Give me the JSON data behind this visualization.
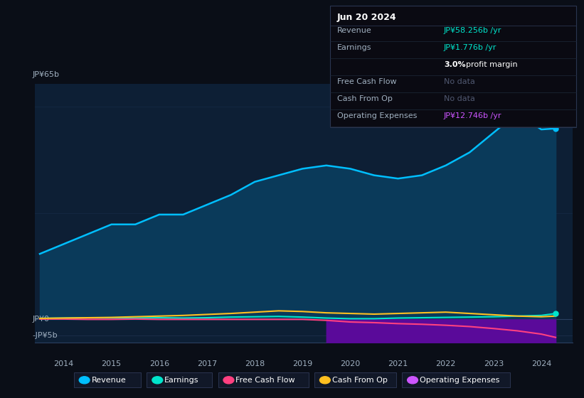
{
  "bg_color": "#0a0e17",
  "plot_bg_color": "#0d1f35",
  "title": "Jun 20 2024",
  "tooltip": {
    "Revenue": "JP¥58.256b /yr",
    "Earnings": "JP¥1.776b /yr",
    "profit_margin": "3.0%",
    "Free_Cash_Flow": "No data",
    "Cash_From_Op": "No data",
    "Operating_Expenses": "JP¥12.746b /yr"
  },
  "ylabel_top": "JP¥65b",
  "ylabel_zero": "JP¥0",
  "ylabel_neg": "-JP¥5b",
  "ylim": [
    -7,
    72
  ],
  "xlim": [
    2013.4,
    2024.65
  ],
  "years": [
    2013.5,
    2014.0,
    2014.5,
    2015.0,
    2015.5,
    2016.0,
    2016.5,
    2017.0,
    2017.5,
    2018.0,
    2018.5,
    2019.0,
    2019.5,
    2020.0,
    2020.5,
    2021.0,
    2021.5,
    2022.0,
    2022.5,
    2023.0,
    2023.5,
    2024.0,
    2024.3
  ],
  "revenue": [
    20,
    23,
    26,
    29,
    29,
    32,
    32,
    35,
    38,
    42,
    44,
    46,
    47,
    46,
    44,
    43,
    44,
    47,
    51,
    57,
    63,
    58,
    58.3
  ],
  "earnings": [
    0.3,
    0.4,
    0.5,
    0.5,
    0.4,
    0.5,
    0.4,
    0.5,
    0.7,
    0.8,
    0.9,
    0.7,
    0.4,
    0.2,
    0.2,
    0.4,
    0.5,
    0.6,
    0.7,
    0.8,
    1.0,
    1.2,
    1.776
  ],
  "free_cash_flow": [
    0.1,
    0.1,
    0.0,
    0.0,
    0.1,
    0.0,
    0.0,
    0.0,
    0.0,
    0.0,
    0.0,
    0.0,
    -0.3,
    -0.8,
    -1.0,
    -1.3,
    -1.5,
    -1.8,
    -2.2,
    -2.8,
    -3.5,
    -4.5,
    -5.5
  ],
  "cash_from_op": [
    0.3,
    0.4,
    0.5,
    0.6,
    0.8,
    1.0,
    1.2,
    1.5,
    1.8,
    2.2,
    2.6,
    2.4,
    2.0,
    1.8,
    1.6,
    1.8,
    2.0,
    2.2,
    1.8,
    1.4,
    1.0,
    0.8,
    1.0
  ],
  "opex_x": [
    2019.5,
    2020.0,
    2020.5,
    2021.0,
    2021.5,
    2022.0,
    2022.5,
    2023.0,
    2023.5,
    2024.0,
    2024.3
  ],
  "opex_y": [
    -10.5,
    -10.5,
    -10.8,
    -11.2,
    -11.5,
    -11.8,
    -12.0,
    -12.2,
    -12.4,
    -12.6,
    -12.746
  ],
  "revenue_color": "#00bfff",
  "earnings_color": "#00e5cc",
  "free_cash_flow_color": "#ff4080",
  "cash_from_op_color": "#ffc020",
  "opex_line_color": "#cc55ff",
  "opex_fill_color": "#5a0a9a",
  "revenue_fill_color": "#0a3a5a",
  "grid_color": "#1a3050",
  "text_color": "#a0b0c0",
  "cyan_color": "#00e5cc",
  "purple_color": "#cc55ff",
  "no_data_color": "#505870",
  "legend_bg": "#111828",
  "legend_border": "#2a3550"
}
